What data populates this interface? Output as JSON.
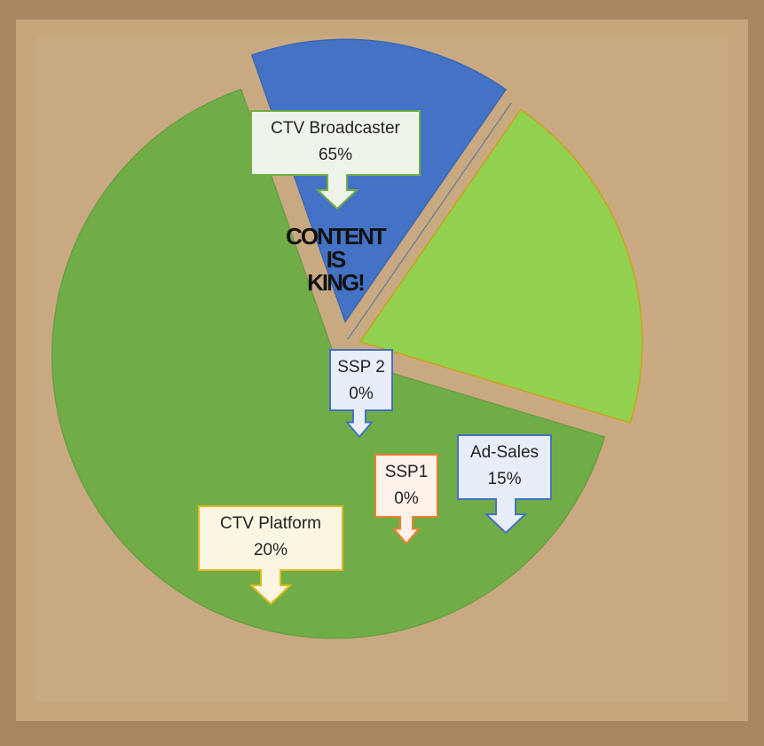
{
  "chart_data": {
    "type": "pie",
    "categories": [
      "CTV Broadcaster",
      "Ad-Sales",
      "SSP1",
      "SSP 2",
      "CTV Platform"
    ],
    "values": [
      65,
      15,
      0,
      0,
      20
    ],
    "value_labels": [
      "65%",
      "15%",
      "0%",
      "0%",
      "20%"
    ],
    "colors": [
      "#70ad47",
      "#4472c4",
      "#ed7d31",
      "#4472c4",
      "#92d050"
    ],
    "annotations": [
      "CONTENT",
      "IS",
      "KING!"
    ]
  }
}
